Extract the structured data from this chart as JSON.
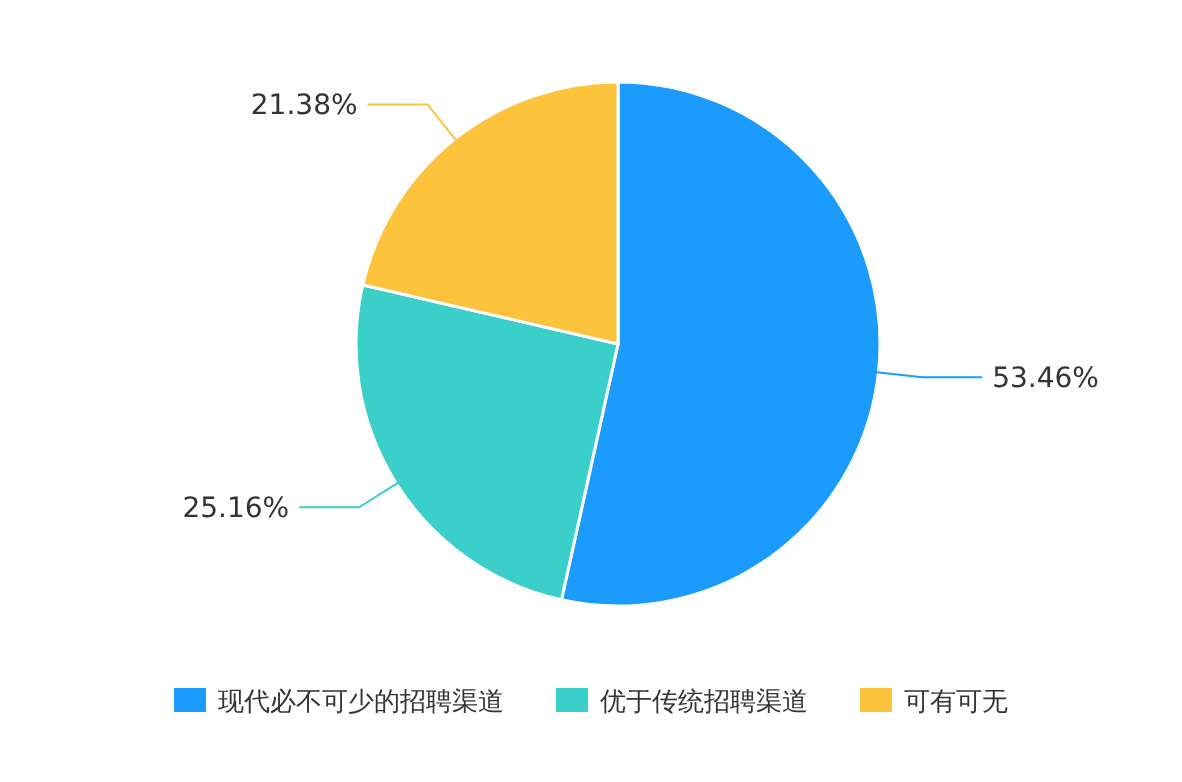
{
  "chart_data": {
    "type": "pie",
    "categories": [
      "现代必不可少的招聘渠道",
      "优于传统招聘渠道",
      "可有可无"
    ],
    "values": [
      53.46,
      25.16,
      21.38
    ],
    "colors": [
      "#1a9bfd",
      "#3acfc9",
      "#fec33c"
    ],
    "value_labels": [
      "53.46%",
      "25.16%",
      "21.38%"
    ],
    "legend": "bottom"
  }
}
